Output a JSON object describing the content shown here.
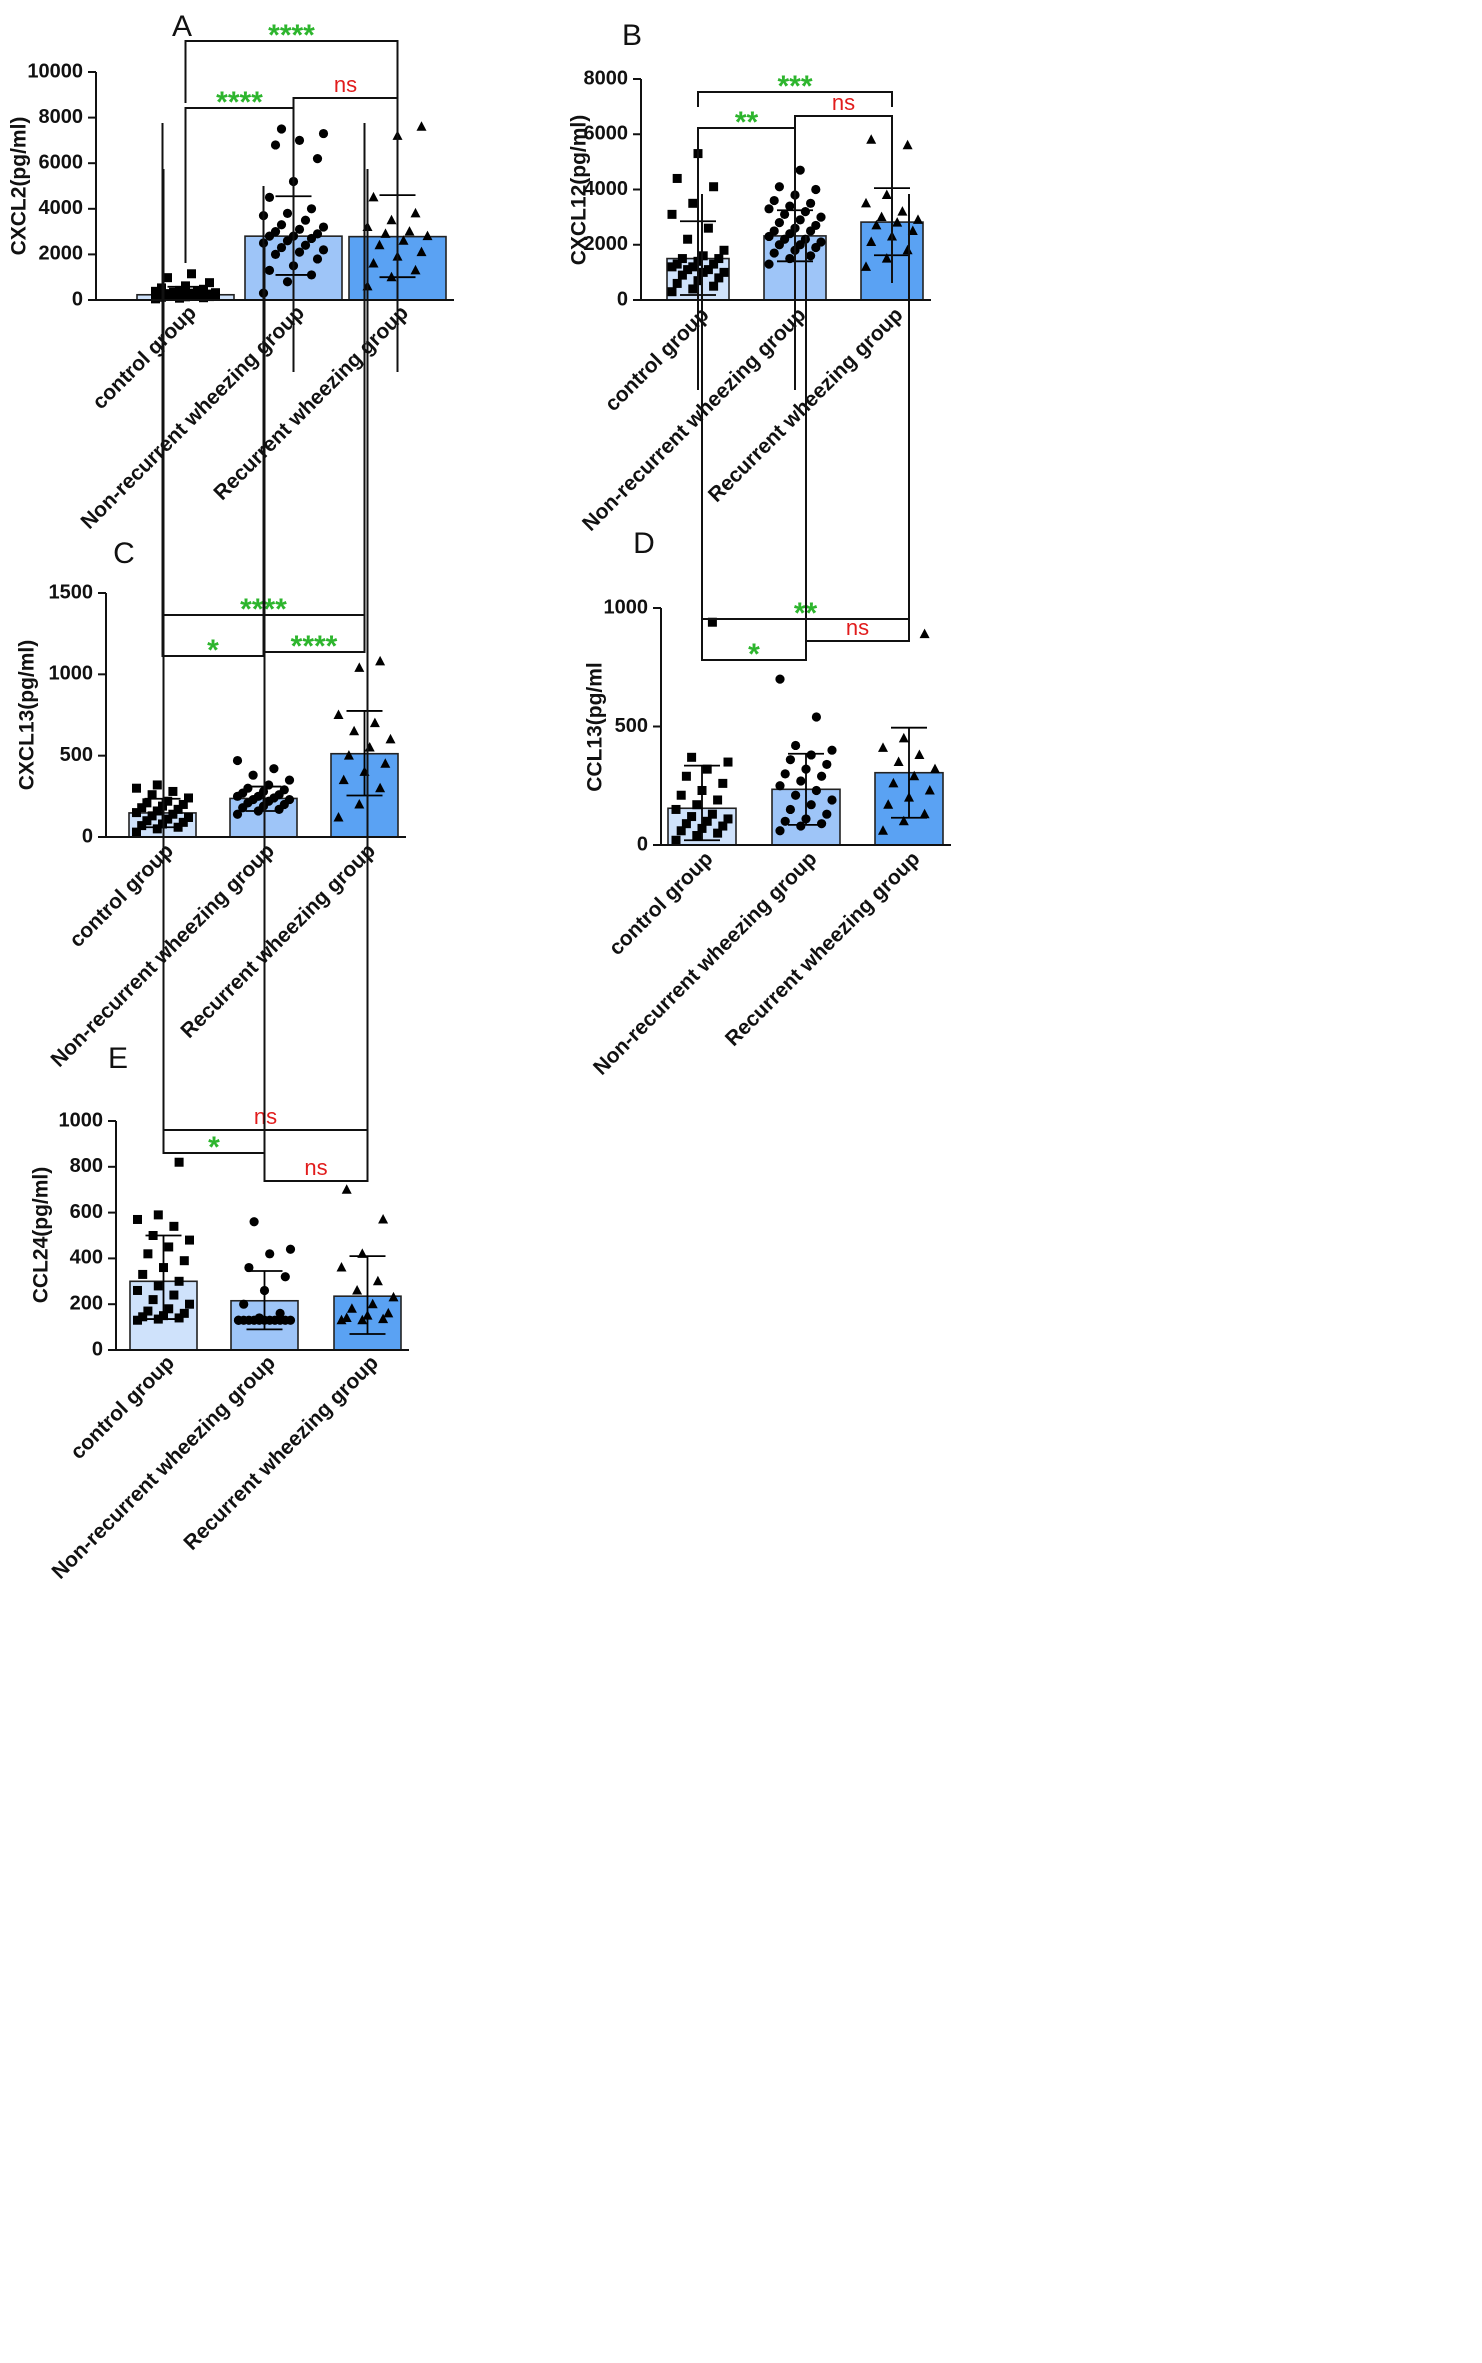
{
  "figure": {
    "colors": {
      "axis": "#111111",
      "bars": [
        "#cfe2fb",
        "#9ec5f8",
        "#5aa2f3"
      ],
      "significant": "#2db52d",
      "not_significant": "#e11c1c"
    }
  },
  "chart_data": [
    {
      "panel": "A",
      "type": "bar",
      "title": "",
      "ylabel": "CXCL2(pg/ml)",
      "ylim": [
        0,
        10000
      ],
      "yticks": [
        0,
        2000,
        4000,
        6000,
        8000,
        10000
      ],
      "ytick_labels": [
        "0",
        "2000",
        "4000",
        "6000",
        "8000",
        "10000"
      ],
      "categories": [
        "control group",
        "Non-recurrent wheezing group",
        "Recurrent wheezing group"
      ],
      "values": [
        230,
        2800,
        2780
      ],
      "error_upper": [
        580,
        4550,
        4600
      ],
      "error_lower": [
        70,
        1100,
        1000
      ],
      "markers": [
        "square",
        "circle",
        "triangle"
      ],
      "points": [
        [
          50,
          80,
          100,
          120,
          140,
          150,
          160,
          170,
          180,
          190,
          200,
          210,
          220,
          230,
          240,
          250,
          260,
          280,
          300,
          320,
          340,
          360,
          380,
          420,
          470,
          530,
          620,
          760,
          980,
          1150
        ],
        [
          300,
          800,
          1100,
          1300,
          1500,
          1800,
          2000,
          2100,
          2200,
          2300,
          2400,
          2500,
          2600,
          2700,
          2800,
          2800,
          2900,
          3000,
          3100,
          3200,
          3300,
          3500,
          3700,
          3800,
          4000,
          4500,
          5200,
          6200,
          6800,
          7000,
          7300,
          7500
        ],
        [
          600,
          1000,
          1300,
          1600,
          1900,
          2100,
          2400,
          2600,
          2800,
          2900,
          3000,
          3200,
          3500,
          3800,
          4500,
          7200,
          7600
        ]
      ],
      "comparisons": [
        {
          "groups": [
            0,
            2
          ],
          "label": "****"
        },
        {
          "groups": [
            0,
            1
          ],
          "label": "****"
        },
        {
          "groups": [
            1,
            2
          ],
          "label": "ns"
        }
      ]
    },
    {
      "panel": "B",
      "type": "bar",
      "title": "",
      "ylabel": "CXCL12(pg/ml)",
      "ylim": [
        0,
        8000
      ],
      "yticks": [
        0,
        2000,
        4000,
        6000,
        8000
      ],
      "ytick_labels": [
        "0",
        "2000",
        "4000",
        "6000",
        "8000"
      ],
      "categories": [
        "control group",
        "Non-recurrent wheezing group",
        "Recurrent wheezing group"
      ],
      "values": [
        1500,
        2320,
        2820
      ],
      "error_upper": [
        2850,
        3250,
        4050
      ],
      "error_lower": [
        180,
        1400,
        1620
      ],
      "markers": [
        "square",
        "circle",
        "triangle"
      ],
      "points": [
        [
          300,
          400,
          500,
          600,
          700,
          800,
          900,
          1000,
          1000,
          1100,
          1100,
          1200,
          1200,
          1300,
          1300,
          1400,
          1500,
          1500,
          1600,
          1800,
          2200,
          2600,
          3100,
          3500,
          4100,
          4400,
          5300
        ],
        [
          1300,
          1500,
          1600,
          1700,
          1800,
          1900,
          2000,
          2000,
          2100,
          2200,
          2200,
          2300,
          2400,
          2500,
          2500,
          2600,
          2700,
          2800,
          2900,
          3000,
          3100,
          3200,
          3300,
          3400,
          3500,
          3600,
          3800,
          4000,
          4100,
          4700
        ],
        [
          1200,
          1500,
          1800,
          2100,
          2300,
          2500,
          2700,
          2800,
          2900,
          3000,
          3200,
          3500,
          3800,
          5600,
          5800
        ]
      ],
      "comparisons": [
        {
          "groups": [
            0,
            2
          ],
          "label": "***"
        },
        {
          "groups": [
            0,
            1
          ],
          "label": "**"
        },
        {
          "groups": [
            1,
            2
          ],
          "label": "ns"
        }
      ]
    },
    {
      "panel": "C",
      "type": "bar",
      "title": "",
      "ylabel": "CXCL13(pg/ml)",
      "ylim": [
        0,
        1500
      ],
      "yticks": [
        0,
        500,
        1000,
        1500
      ],
      "ytick_labels": [
        "0",
        "500",
        "1000",
        "1500"
      ],
      "categories": [
        "control group",
        "Non-recurrent wheezing group",
        "Recurrent wheezing group"
      ],
      "values": [
        148,
        237,
        512
      ],
      "error_upper": [
        235,
        310,
        775
      ],
      "error_lower": [
        60,
        160,
        255
      ],
      "markers": [
        "square",
        "circle",
        "triangle"
      ],
      "points": [
        [
          30,
          50,
          60,
          70,
          80,
          90,
          100,
          110,
          120,
          130,
          140,
          150,
          160,
          170,
          180,
          190,
          200,
          210,
          220,
          240,
          260,
          280,
          300,
          320
        ],
        [
          140,
          160,
          170,
          180,
          190,
          200,
          210,
          220,
          230,
          230,
          240,
          250,
          250,
          260,
          270,
          280,
          290,
          300,
          320,
          350,
          380,
          420,
          470
        ],
        [
          120,
          200,
          300,
          350,
          400,
          450,
          500,
          550,
          600,
          650,
          700,
          750,
          1040,
          1080
        ]
      ],
      "comparisons": [
        {
          "groups": [
            0,
            2
          ],
          "label": "****"
        },
        {
          "groups": [
            0,
            1
          ],
          "label": "*"
        },
        {
          "groups": [
            1,
            2
          ],
          "label": "****"
        }
      ]
    },
    {
      "panel": "D",
      "type": "bar",
      "title": "",
      "ylabel": "CCL13(pg/ml",
      "ylim": [
        0,
        1000
      ],
      "yticks": [
        0,
        500,
        1000
      ],
      "ytick_labels": [
        "0",
        "500",
        "1000"
      ],
      "categories": [
        "control group",
        "Non-recurrent wheezing group",
        "Recurrent wheezing group"
      ],
      "values": [
        155,
        235,
        305
      ],
      "error_upper": [
        335,
        385,
        495
      ],
      "error_lower": [
        20,
        85,
        115
      ],
      "markers": [
        "square",
        "circle",
        "triangle"
      ],
      "points": [
        [
          20,
          40,
          50,
          60,
          70,
          80,
          90,
          100,
          110,
          120,
          130,
          150,
          170,
          190,
          210,
          230,
          260,
          290,
          320,
          350,
          370,
          940
        ],
        [
          60,
          80,
          90,
          100,
          110,
          130,
          150,
          170,
          190,
          210,
          230,
          250,
          270,
          290,
          300,
          320,
          340,
          360,
          380,
          400,
          420,
          540,
          700
        ],
        [
          60,
          100,
          130,
          170,
          200,
          230,
          260,
          290,
          320,
          350,
          380,
          410,
          450,
          890
        ]
      ],
      "comparisons": [
        {
          "groups": [
            0,
            2
          ],
          "label": "**"
        },
        {
          "groups": [
            0,
            1
          ],
          "label": "*"
        },
        {
          "groups": [
            1,
            2
          ],
          "label": "ns"
        }
      ]
    },
    {
      "panel": "E",
      "type": "bar",
      "title": "",
      "ylabel": "CCL24(pg/ml)",
      "ylim": [
        0,
        1000
      ],
      "yticks": [
        0,
        200,
        400,
        600,
        800,
        1000
      ],
      "ytick_labels": [
        "0",
        "200",
        "400",
        "600",
        "800",
        "1000"
      ],
      "categories": [
        "control group",
        "Non-recurrent wheezing group",
        "Recurrent wheezing group"
      ],
      "values": [
        300,
        215,
        235
      ],
      "error_upper": [
        500,
        345,
        410
      ],
      "error_lower": [
        135,
        90,
        70
      ],
      "markers": [
        "square",
        "circle",
        "triangle"
      ],
      "points": [
        [
          130,
          135,
          140,
          145,
          150,
          160,
          170,
          180,
          200,
          220,
          240,
          260,
          280,
          300,
          330,
          360,
          390,
          420,
          450,
          480,
          500,
          540,
          570,
          590,
          820
        ],
        [
          130,
          130,
          130,
          130,
          130,
          130,
          130,
          130,
          130,
          130,
          130,
          130,
          140,
          160,
          200,
          260,
          320,
          360,
          420,
          440,
          560
        ],
        [
          130,
          130,
          135,
          140,
          150,
          160,
          180,
          200,
          230,
          260,
          300,
          360,
          420,
          570,
          700
        ]
      ],
      "comparisons": [
        {
          "groups": [
            0,
            2
          ],
          "label": "ns"
        },
        {
          "groups": [
            0,
            1
          ],
          "label": "*"
        },
        {
          "groups": [
            1,
            2
          ],
          "label": "ns"
        }
      ]
    }
  ]
}
